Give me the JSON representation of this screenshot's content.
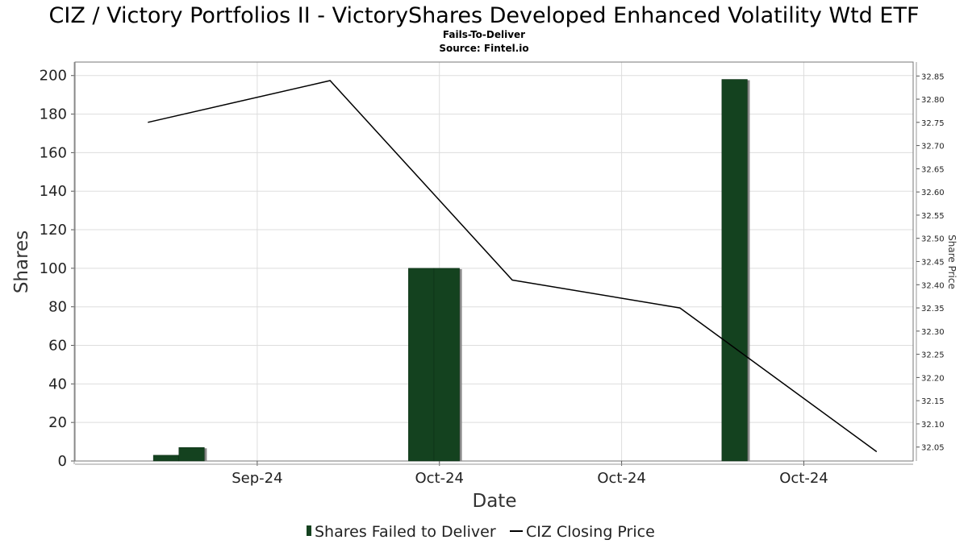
{
  "chart_data": {
    "type": "bar",
    "title": "CIZ / Victory Portfolios II - VictoryShares Developed Enhanced Volatility Wtd ETF",
    "subtitle": "Fails-To-Deliver",
    "source": "Source: Fintel.io",
    "xlabel": "Date",
    "ylabel": "Shares",
    "y2label": "Share Price",
    "ylim": [
      0,
      207
    ],
    "y2lim": [
      32.02,
      32.88
    ],
    "yticks": [
      0,
      20,
      40,
      60,
      80,
      100,
      120,
      140,
      160,
      180,
      200
    ],
    "y2ticks": [
      "32.05",
      "32.10",
      "32.15",
      "32.20",
      "32.25",
      "32.30",
      "32.35",
      "32.40",
      "32.45",
      "32.50",
      "32.55",
      "32.60",
      "32.65",
      "32.70",
      "32.75",
      "32.80",
      "32.85"
    ],
    "xticks": [
      "Sep-24",
      "Oct-24",
      "Oct-24",
      "Oct-24"
    ],
    "grid": true,
    "legend_position": "bottom-center",
    "series": [
      {
        "name": "Shares Failed to Deliver",
        "kind": "bar",
        "color": "#14421f",
        "points": [
          {
            "t": 0.5,
            "value": 3
          },
          {
            "t": 1.2,
            "value": 7
          },
          {
            "t": 7.5,
            "value": 100
          },
          {
            "t": 8.2,
            "value": 100
          },
          {
            "t": 16.1,
            "value": 198
          }
        ]
      },
      {
        "name": "CIZ Closing Price",
        "kind": "line",
        "color": "#000000",
        "points": [
          {
            "t": 0,
            "value": 32.75
          },
          {
            "t": 5,
            "value": 32.84
          },
          {
            "t": 10,
            "value": 32.41
          },
          {
            "t": 14.6,
            "value": 32.35
          },
          {
            "t": 20,
            "value": 32.04
          }
        ]
      }
    ]
  }
}
